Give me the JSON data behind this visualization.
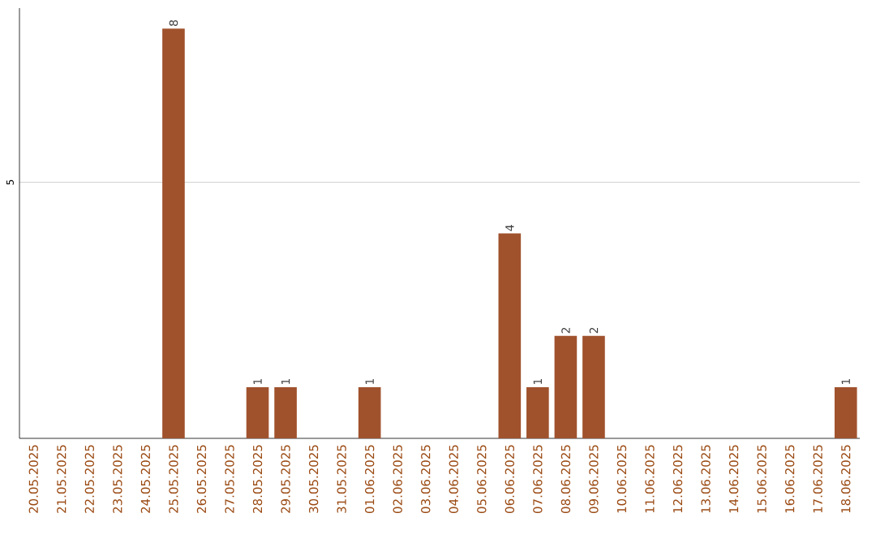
{
  "chart_data": {
    "type": "bar",
    "categories": [
      "20.05.2025",
      "21.05.2025",
      "22.05.2025",
      "23.05.2025",
      "24.05.2025",
      "25.05.2025",
      "26.05.2025",
      "27.05.2025",
      "28.05.2025",
      "29.05.2025",
      "30.05.2025",
      "31.05.2025",
      "01.06.2025",
      "02.06.2025",
      "03.06.2025",
      "04.06.2025",
      "05.06.2025",
      "06.06.2025",
      "07.06.2025",
      "08.06.2025",
      "09.06.2025",
      "10.06.2025",
      "11.06.2025",
      "12.06.2025",
      "13.06.2025",
      "14.06.2025",
      "15.06.2025",
      "16.06.2025",
      "17.06.2025",
      "18.06.2025"
    ],
    "values": [
      0,
      0,
      0,
      0,
      0,
      8,
      0,
      0,
      1,
      1,
      0,
      0,
      1,
      0,
      0,
      0,
      0,
      4,
      1,
      2,
      2,
      0,
      0,
      0,
      0,
      0,
      0,
      0,
      0,
      1
    ],
    "value_labels": [
      null,
      null,
      null,
      null,
      null,
      "8",
      null,
      null,
      "1",
      "1",
      null,
      null,
      "1",
      null,
      null,
      null,
      null,
      "4",
      "1",
      "2",
      "2",
      null,
      null,
      null,
      null,
      null,
      null,
      null,
      null,
      "1"
    ],
    "color": "#a0522d",
    "ylim": [
      0,
      8.4
    ],
    "yticks": [
      5
    ],
    "grid": "y"
  }
}
